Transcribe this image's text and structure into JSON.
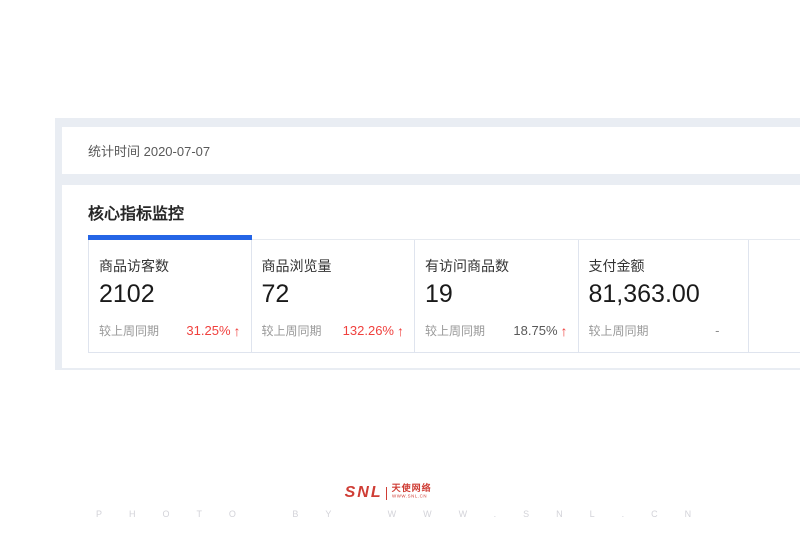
{
  "stats_bar": {
    "text": "统计时间 2020-07-07"
  },
  "section": {
    "title": "核心指标监控",
    "cards": [
      {
        "label": "商品访客数",
        "value": "2102",
        "compare_label": "较上周同期",
        "change": "31.25%",
        "trend": "up",
        "change_color": "#f0413e"
      },
      {
        "label": "商品浏览量",
        "value": "72",
        "compare_label": "较上周同期",
        "change": "132.26%",
        "trend": "up",
        "change_color": "#f0413e"
      },
      {
        "label": "有访问商品数",
        "value": "19",
        "compare_label": "较上周同期",
        "change": "18.75%",
        "trend": "up",
        "change_color": "#595959"
      },
      {
        "label": "支付金额",
        "value": "81,363.00",
        "compare_label": "较上周同期",
        "change": "-",
        "trend": "none",
        "change_color": "#8c8c8c"
      }
    ]
  },
  "icons": {
    "up_arrow": "↑"
  },
  "footer": {
    "logo_text": "SNL",
    "logo_name": "天使网络",
    "logo_sub": "WWW.SNL.CN",
    "watermark": "PHOTO BY WWW.SNL.CN"
  },
  "colors": {
    "accent_blue": "#2565e6",
    "up_red": "#f0413e",
    "logo_red": "#cf3d35",
    "page_bg": "#e9edf3"
  }
}
